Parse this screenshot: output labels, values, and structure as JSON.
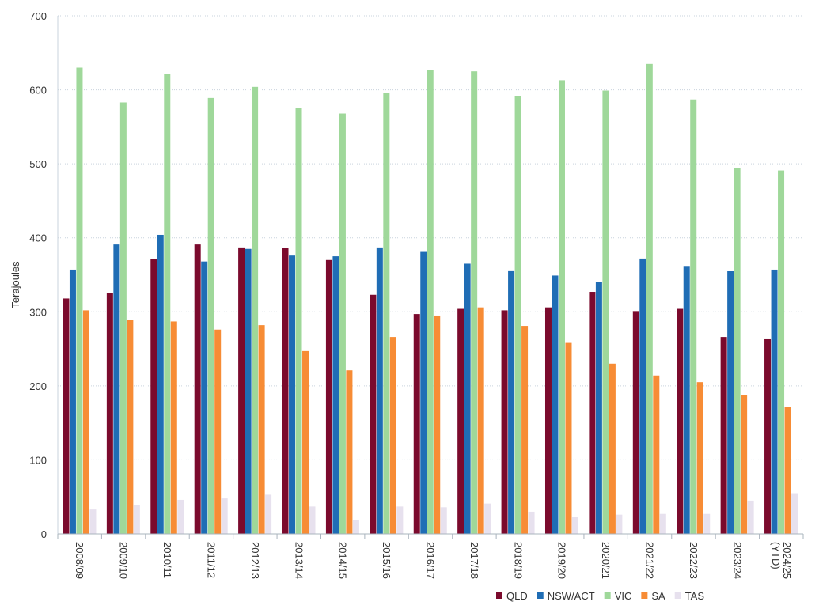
{
  "chart_data": {
    "type": "bar",
    "ylabel": "Terajoules",
    "ylim": [
      0,
      700
    ],
    "yticks": [
      0,
      100,
      200,
      300,
      400,
      500,
      600,
      700
    ],
    "grid": true,
    "legend_position": "bottom-right",
    "categories": [
      "2008/09",
      "2009/10",
      "2010/11",
      "2011/12",
      "2012/13",
      "2013/14",
      "2014/15",
      "2015/16",
      "2016/17",
      "2017/18",
      "2018/19",
      "2019/20",
      "2020/21",
      "2021/22",
      "2022/23",
      "2023/24",
      "2024/25 (YTD)"
    ],
    "series": [
      {
        "name": "QLD",
        "color": "#7b0a2d",
        "values": [
          318,
          325,
          371,
          391,
          387,
          386,
          370,
          323,
          297,
          304,
          302,
          306,
          327,
          301,
          304,
          266,
          264
        ]
      },
      {
        "name": "NSW/ACT",
        "color": "#1f6db5",
        "values": [
          357,
          391,
          404,
          368,
          385,
          376,
          375,
          387,
          382,
          365,
          356,
          349,
          340,
          372,
          362,
          355,
          357
        ]
      },
      {
        "name": "VIC",
        "color": "#9fd89a",
        "values": [
          630,
          583,
          621,
          589,
          604,
          575,
          568,
          596,
          627,
          625,
          591,
          613,
          599,
          635,
          587,
          494,
          491
        ]
      },
      {
        "name": "SA",
        "color": "#f78c35",
        "values": [
          302,
          289,
          287,
          276,
          282,
          247,
          221,
          266,
          295,
          306,
          281,
          258,
          230,
          214,
          205,
          188,
          172
        ]
      },
      {
        "name": "TAS",
        "color": "#e7e1ee",
        "values": [
          33,
          39,
          46,
          48,
          53,
          37,
          19,
          37,
          36,
          41,
          30,
          23,
          26,
          27,
          27,
          45,
          55
        ]
      }
    ]
  }
}
